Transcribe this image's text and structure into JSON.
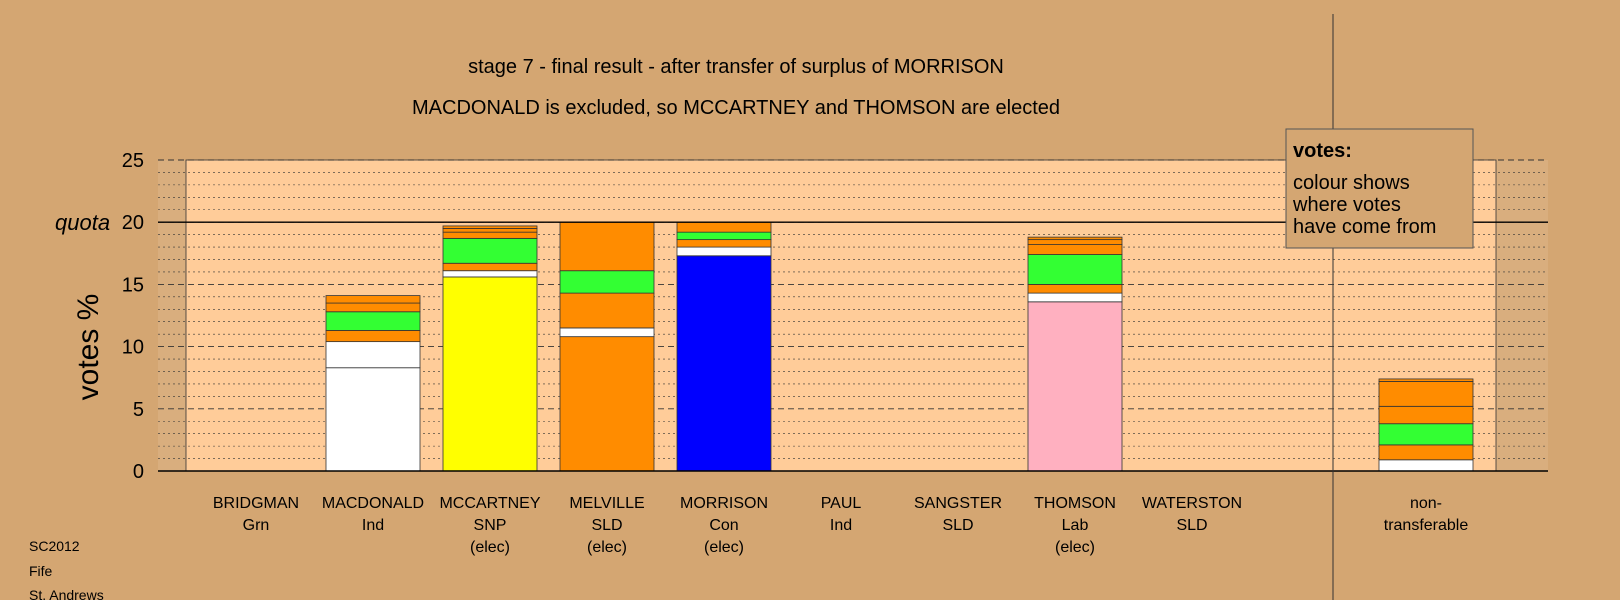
{
  "chart_data": {
    "type": "bar",
    "stacked": true,
    "title": "stage 7 - final result - after transfer of surplus of MORRISON",
    "subtitle": "MACDONALD is excluded, so MCCARTNEY and THOMSON are elected",
    "ylabel": "votes %",
    "ylim": [
      0,
      25
    ],
    "yticks": [
      "0",
      "5",
      "10",
      "15",
      "20",
      "25"
    ],
    "quota": {
      "label": "quota",
      "value": 20
    },
    "grid": true,
    "legend": {
      "position": "top-right",
      "title": "votes:",
      "lines": [
        "colour shows",
        "where votes",
        "have come from"
      ]
    },
    "candidates": [
      {
        "name": "BRIDGMAN",
        "party": "Grn",
        "status": "",
        "segments": []
      },
      {
        "name": "MACDONALD",
        "party": "Ind",
        "status": "",
        "segments": [
          {
            "value": 8.3,
            "color": "#FFFFFF"
          },
          {
            "value": 2.1,
            "color": "#FFFFFF"
          },
          {
            "value": 0.9,
            "color": "#FF8C00"
          },
          {
            "value": 1.5,
            "color": "#33FF33"
          },
          {
            "value": 0.7,
            "color": "#FF8C00"
          },
          {
            "value": 0.6,
            "color": "#FF8C00"
          }
        ]
      },
      {
        "name": "MCCARTNEY",
        "party": "SNP",
        "status": "(elec)",
        "segments": [
          {
            "value": 15.6,
            "color": "#FFFF00"
          },
          {
            "value": 0.5,
            "color": "#FFFFFF"
          },
          {
            "value": 0.6,
            "color": "#FF8C00"
          },
          {
            "value": 2.0,
            "color": "#33FF33"
          },
          {
            "value": 0.5,
            "color": "#FF8C00"
          },
          {
            "value": 0.3,
            "color": "#FF8C00"
          },
          {
            "value": 0.2,
            "color": "#FF8C00"
          }
        ]
      },
      {
        "name": "MELVILLE",
        "party": "SLD",
        "status": "(elec)",
        "segments": [
          {
            "value": 10.8,
            "color": "#FF8C00"
          },
          {
            "value": 0.7,
            "color": "#FFFFFF"
          },
          {
            "value": 2.8,
            "color": "#FF8C00"
          },
          {
            "value": 1.8,
            "color": "#33FF33"
          },
          {
            "value": 3.9,
            "color": "#FF8C00"
          }
        ]
      },
      {
        "name": "MORRISON",
        "party": "Con",
        "status": "(elec)",
        "segments": [
          {
            "value": 17.3,
            "color": "#0000FF"
          },
          {
            "value": 0.7,
            "color": "#FFFFFF"
          },
          {
            "value": 0.6,
            "color": "#FF8C00"
          },
          {
            "value": 0.6,
            "color": "#33FF33"
          },
          {
            "value": 0.8,
            "color": "#FF8C00"
          }
        ]
      },
      {
        "name": "PAUL",
        "party": "Ind",
        "status": "",
        "segments": []
      },
      {
        "name": "SANGSTER",
        "party": "SLD",
        "status": "",
        "segments": []
      },
      {
        "name": "THOMSON",
        "party": "Lab",
        "status": "(elec)",
        "segments": [
          {
            "value": 13.6,
            "color": "#FFB0C0"
          },
          {
            "value": 0.7,
            "color": "#FFFFFF"
          },
          {
            "value": 0.7,
            "color": "#FF8C00"
          },
          {
            "value": 2.4,
            "color": "#33FF33"
          },
          {
            "value": 0.8,
            "color": "#FF8C00"
          },
          {
            "value": 0.4,
            "color": "#FF8C00"
          },
          {
            "value": 0.2,
            "color": "#FF8C00"
          }
        ]
      },
      {
        "name": "WATERSTON",
        "party": "SLD",
        "status": "",
        "segments": []
      }
    ],
    "nontransferable": {
      "label_lines": [
        "non-",
        "transferable"
      ],
      "segments": [
        {
          "value": 0.9,
          "color": "#FFFFFF"
        },
        {
          "value": 1.2,
          "color": "#FF8C00"
        },
        {
          "value": 1.7,
          "color": "#33FF33"
        },
        {
          "value": 1.4,
          "color": "#FF8C00"
        },
        {
          "value": 2.0,
          "color": "#FF8C00"
        },
        {
          "value": 0.2,
          "color": "#FF8C00"
        }
      ]
    }
  },
  "footer": {
    "election": "SC2012",
    "council": "Fife",
    "ward": "St. Andrews"
  },
  "colors": {
    "background": "#D4A672",
    "plot": "#FFCC99",
    "outer_band": "#D9AE7E"
  }
}
